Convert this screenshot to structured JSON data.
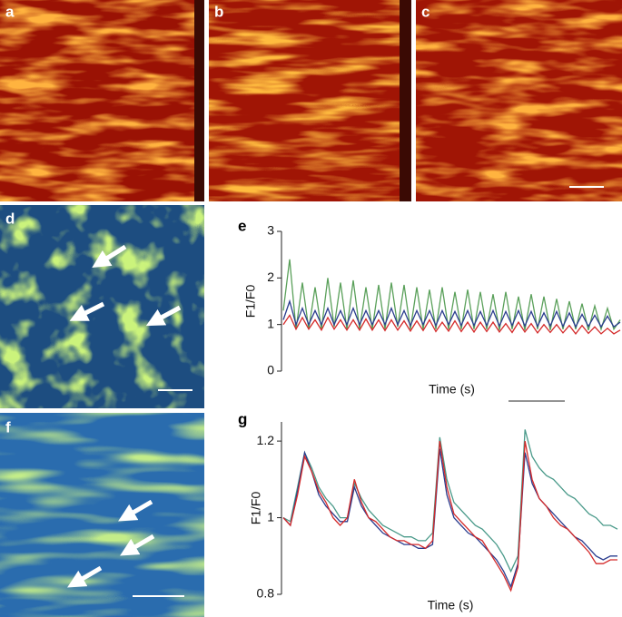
{
  "panel_labels": [
    "a",
    "b",
    "c",
    "d",
    "f"
  ],
  "chart_data": [
    {
      "type": "line",
      "label": "e",
      "ylabel": "F1/F0",
      "xlabel": "Time (s)",
      "ylim": [
        0,
        3
      ],
      "yticks": [
        0,
        1,
        2,
        3
      ],
      "series": [
        {
          "color": "#5aa05a",
          "values": [
            1.3,
            2.4,
            0.9,
            1.9,
            0.9,
            1.8,
            0.9,
            2.0,
            0.95,
            1.9,
            0.9,
            1.95,
            0.9,
            1.8,
            0.9,
            1.85,
            0.9,
            1.9,
            0.95,
            1.85,
            0.9,
            1.8,
            0.9,
            1.75,
            0.9,
            1.8,
            0.9,
            1.7,
            0.9,
            1.75,
            0.9,
            1.7,
            0.9,
            1.65,
            0.88,
            1.7,
            0.9,
            1.6,
            0.88,
            1.65,
            0.9,
            1.6,
            0.88,
            1.55,
            0.9,
            1.5,
            0.9,
            1.45,
            0.88,
            1.4,
            0.9,
            1.35,
            0.9,
            1.1
          ]
        },
        {
          "color": "#2a3c8e",
          "values": [
            1.1,
            1.5,
            1.0,
            1.35,
            1.0,
            1.3,
            1.0,
            1.35,
            1.0,
            1.3,
            1.0,
            1.35,
            1.0,
            1.3,
            1.0,
            1.3,
            1.0,
            1.35,
            1.0,
            1.3,
            0.98,
            1.3,
            1.0,
            1.3,
            0.98,
            1.3,
            1.0,
            1.28,
            0.98,
            1.3,
            0.98,
            1.28,
            0.98,
            1.3,
            0.97,
            1.28,
            0.98,
            1.3,
            0.97,
            1.28,
            0.96,
            1.25,
            0.97,
            1.28,
            0.96,
            1.25,
            0.95,
            1.22,
            0.96,
            1.2,
            0.95,
            1.18,
            0.95,
            1.05
          ]
        },
        {
          "color": "#d42a2a",
          "values": [
            1.0,
            1.2,
            0.9,
            1.15,
            0.9,
            1.1,
            0.88,
            1.15,
            0.9,
            1.1,
            0.88,
            1.1,
            0.88,
            1.12,
            0.88,
            1.1,
            0.87,
            1.1,
            0.88,
            1.08,
            0.86,
            1.08,
            0.87,
            1.1,
            0.85,
            1.05,
            0.86,
            1.08,
            0.85,
            1.05,
            0.84,
            1.05,
            0.85,
            1.05,
            0.84,
            1.02,
            0.83,
            1.05,
            0.84,
            1.02,
            0.82,
            1.0,
            0.83,
            1.0,
            0.82,
            0.98,
            0.8,
            0.98,
            0.81,
            0.95,
            0.8,
            0.92,
            0.8,
            0.88
          ]
        }
      ]
    },
    {
      "type": "line",
      "label": "g",
      "ylabel": "F1/F0",
      "xlabel": "Time (s)",
      "ylim": [
        0.8,
        1.25
      ],
      "yticks": [
        0.8,
        1,
        1.2
      ],
      "series": [
        {
          "color": "#4a9a8a",
          "values": [
            1.0,
            0.99,
            1.08,
            1.17,
            1.13,
            1.08,
            1.05,
            1.03,
            1.0,
            1.0,
            1.09,
            1.05,
            1.02,
            1.0,
            0.98,
            0.97,
            0.96,
            0.95,
            0.95,
            0.94,
            0.94,
            0.96,
            1.21,
            1.1,
            1.04,
            1.02,
            1.0,
            0.98,
            0.97,
            0.95,
            0.93,
            0.9,
            0.86,
            0.9,
            1.23,
            1.16,
            1.13,
            1.11,
            1.1,
            1.08,
            1.06,
            1.05,
            1.03,
            1.01,
            1.0,
            0.98,
            0.98,
            0.97
          ]
        },
        {
          "color": "#2a3c8e",
          "values": [
            1.0,
            0.98,
            1.07,
            1.17,
            1.12,
            1.06,
            1.03,
            1.01,
            0.99,
            0.99,
            1.08,
            1.03,
            1.0,
            0.98,
            0.96,
            0.95,
            0.94,
            0.93,
            0.93,
            0.92,
            0.92,
            0.93,
            1.18,
            1.06,
            1.0,
            0.98,
            0.96,
            0.95,
            0.93,
            0.91,
            0.89,
            0.86,
            0.82,
            0.88,
            1.17,
            1.09,
            1.05,
            1.03,
            1.01,
            0.99,
            0.97,
            0.95,
            0.94,
            0.92,
            0.9,
            0.89,
            0.9,
            0.9
          ]
        },
        {
          "color": "#d42a2a",
          "values": [
            1.0,
            0.98,
            1.06,
            1.16,
            1.12,
            1.07,
            1.04,
            1.0,
            0.98,
            1.0,
            1.1,
            1.04,
            1.0,
            0.99,
            0.97,
            0.95,
            0.94,
            0.94,
            0.93,
            0.93,
            0.92,
            0.94,
            1.2,
            1.08,
            1.01,
            0.99,
            0.97,
            0.95,
            0.94,
            0.91,
            0.88,
            0.85,
            0.81,
            0.87,
            1.2,
            1.1,
            1.05,
            1.03,
            1.0,
            0.98,
            0.97,
            0.95,
            0.93,
            0.91,
            0.88,
            0.88,
            0.89,
            0.89
          ]
        }
      ]
    }
  ]
}
